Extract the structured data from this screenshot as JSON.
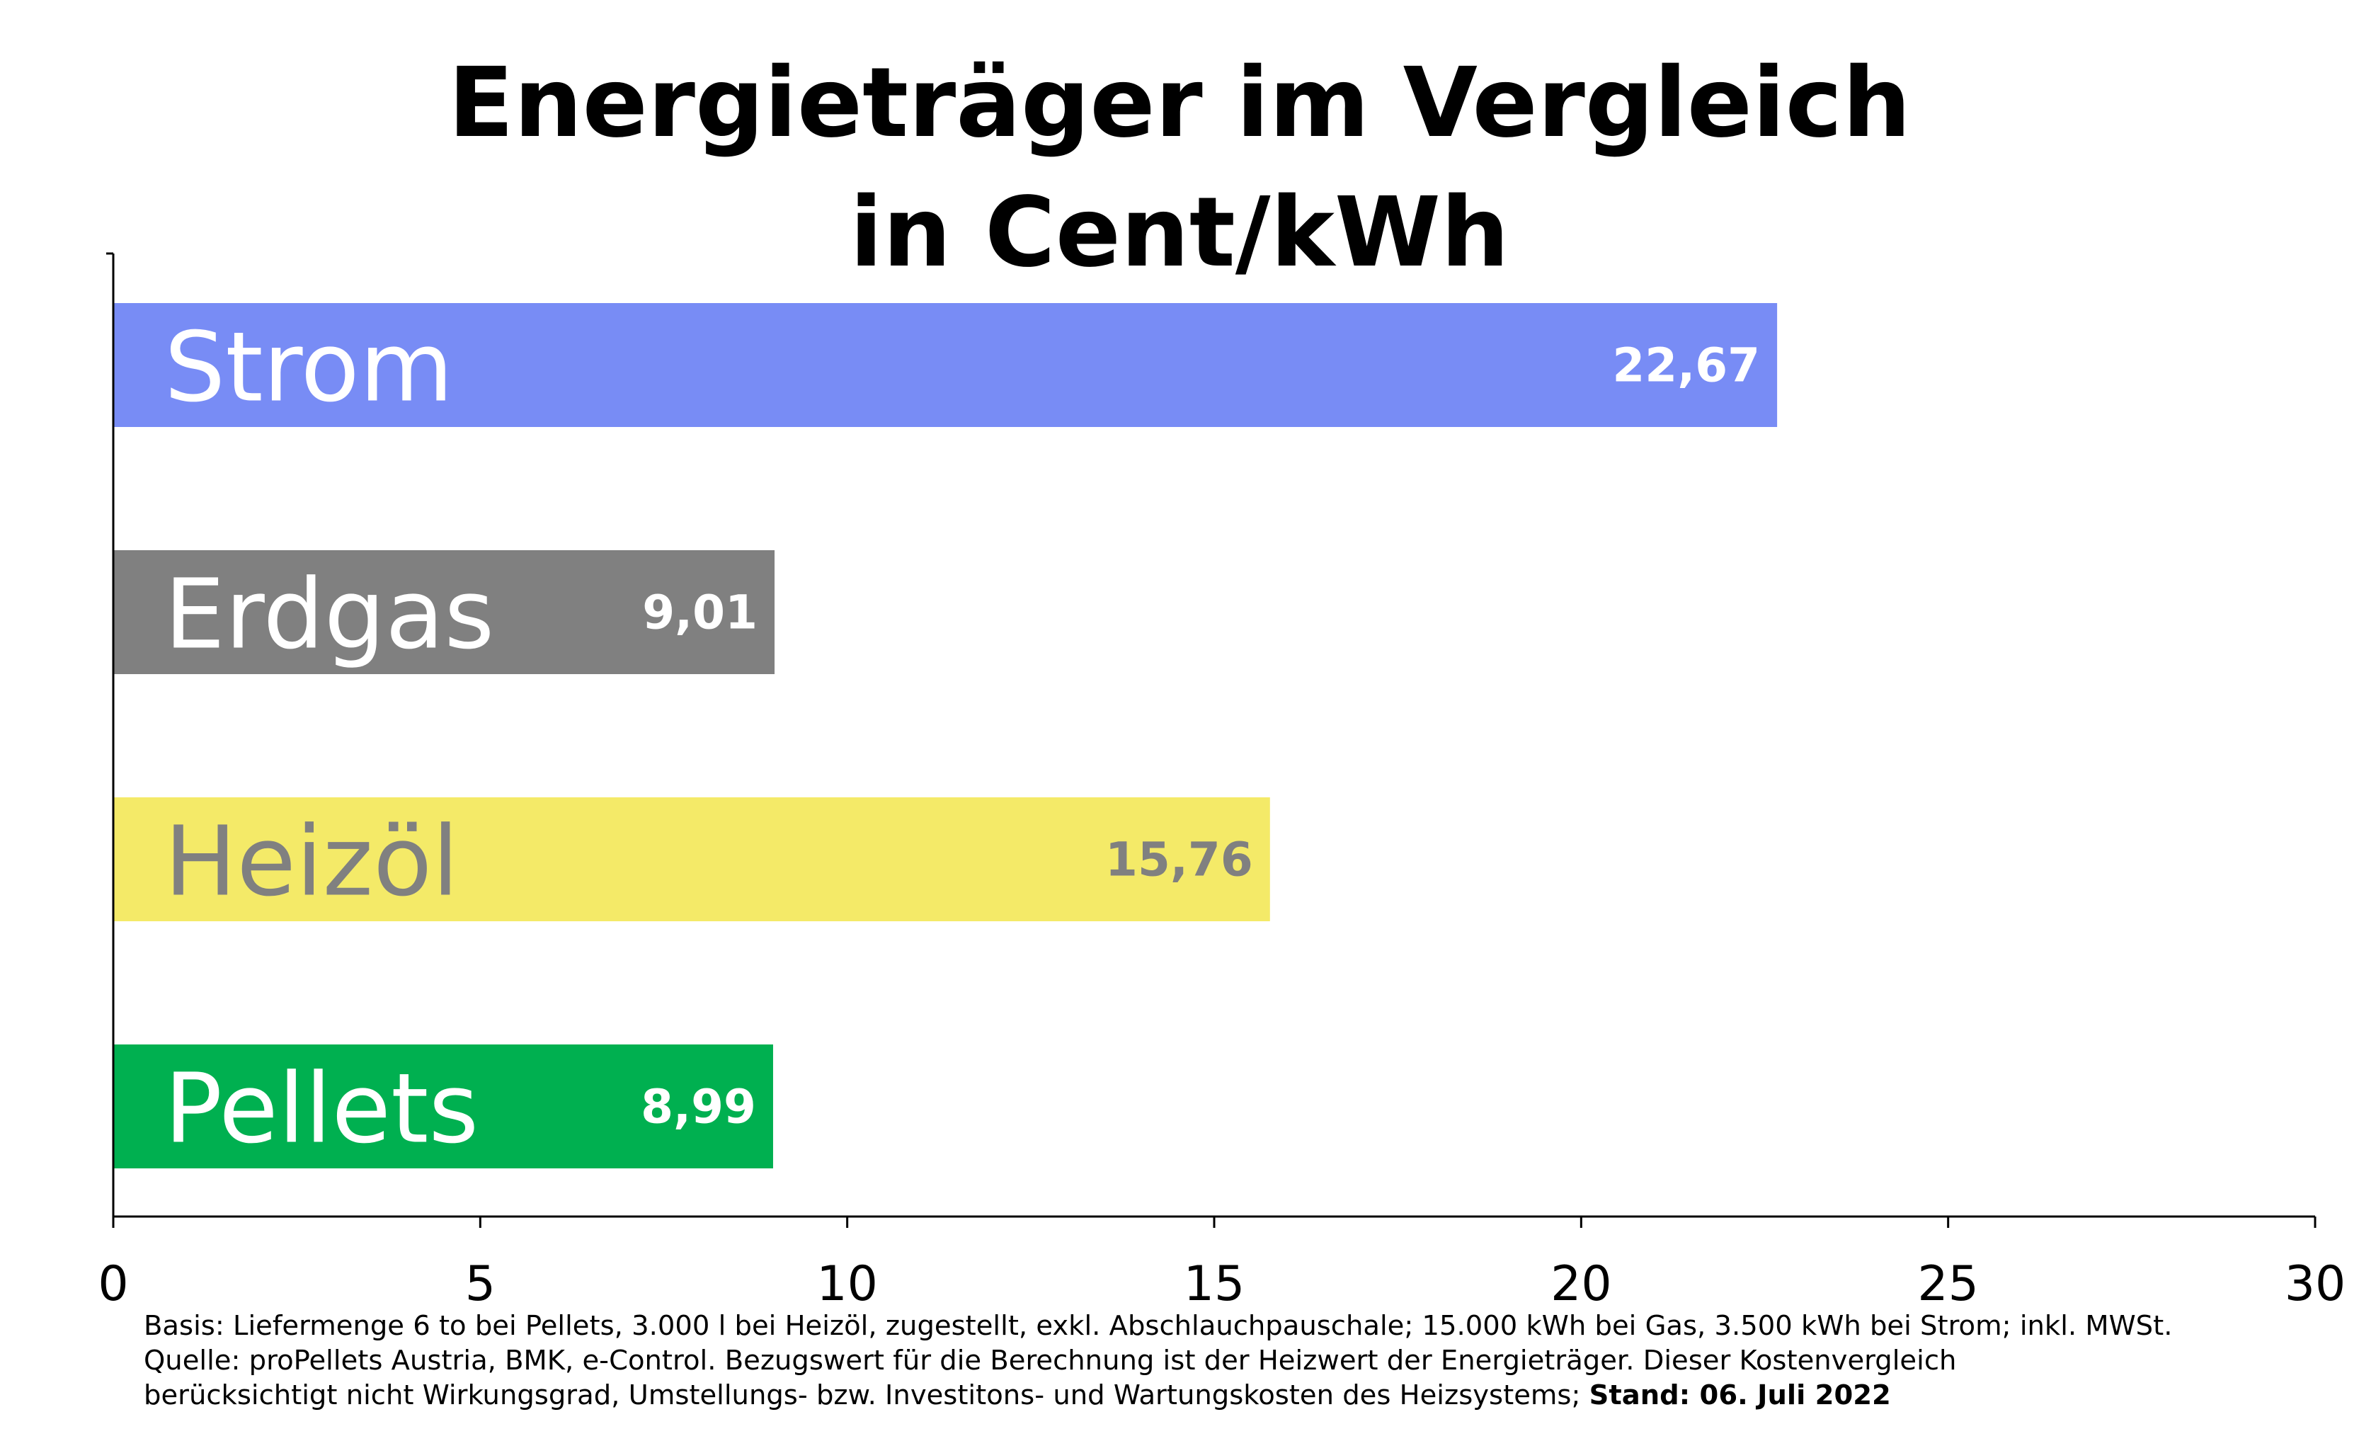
{
  "chart_data": {
    "type": "bar",
    "orientation": "horizontal",
    "title_lines": [
      "Energieträger im Vergleich",
      "in Cent/kWh"
    ],
    "xlim": [
      0,
      30
    ],
    "x_ticks": [
      0,
      5,
      10,
      15,
      20,
      25,
      30
    ],
    "x_tick_labels": [
      "0",
      "5",
      "10",
      "15",
      "20",
      "25",
      "30"
    ],
    "grid": false,
    "legend": "none",
    "bars": [
      {
        "category": "Strom",
        "value": 22.67,
        "value_label": "22,67",
        "color": "#788cf5",
        "label_color": "#ffffff"
      },
      {
        "category": "Erdgas",
        "value": 9.01,
        "value_label": "9,01",
        "color": "#808080",
        "label_color": "#ffffff"
      },
      {
        "category": "Heizöl",
        "value": 15.76,
        "value_label": "15,76",
        "color": "#f4ea68",
        "label_color": "#808080"
      },
      {
        "category": "Pellets",
        "value": 8.99,
        "value_label": "8,99",
        "color": "#00b050",
        "label_color": "#ffffff"
      }
    ]
  },
  "footnote": {
    "line1": "Basis: Liefermenge 6 to bei Pellets, 3.000 l bei Heizöl, zugestellt, exkl. Abschlauchpauschale; 15.000 kWh bei Gas, 3.500 kWh bei Strom; inkl. MWSt.",
    "line2": "Quelle: proPellets Austria, BMK, e-Control. Bezugswert für die Berechnung ist der Heizwert der Energieträger. Dieser Kostenvergleich",
    "line3_prefix": "berücksichtigt nicht Wirkungsgrad, Umstellungs- bzw. Investitons- und Wartungskosten des Heizsystems; ",
    "line3_bold": "Stand: 06. Juli 2022"
  }
}
